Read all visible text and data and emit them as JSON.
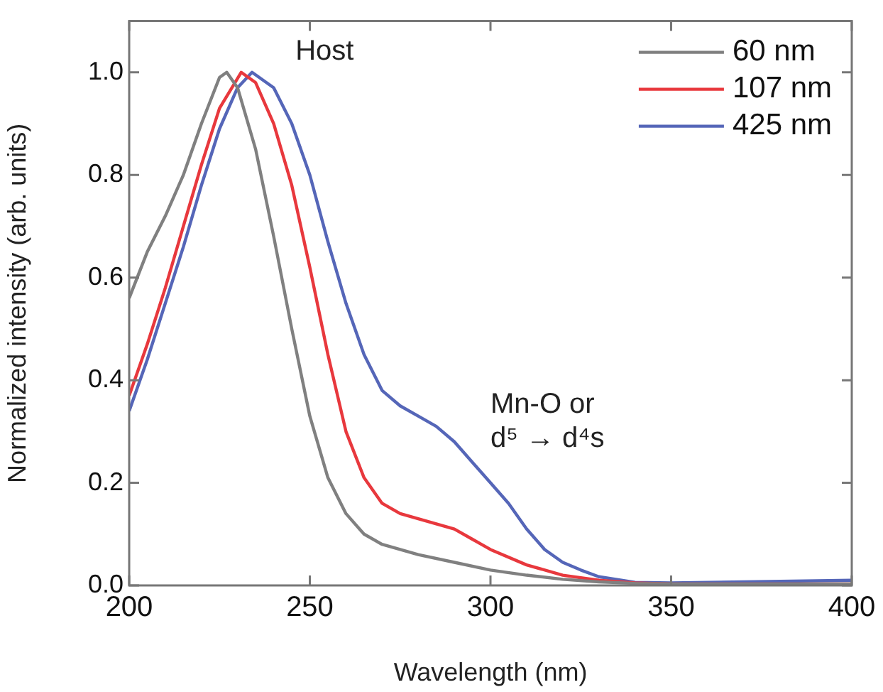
{
  "chart_data": {
    "type": "line",
    "xlabel": "Wavelength (nm)",
    "ylabel": "Normalized intensity (arb. units)",
    "xlim": [
      200,
      400
    ],
    "xticks": [
      200,
      250,
      300,
      350,
      400
    ],
    "ylim": [
      0,
      1.1
    ],
    "yticks": [
      {
        "value": 0,
        "label": "0.0"
      },
      {
        "value": 0.2,
        "label": "0.2"
      },
      {
        "value": 0.4,
        "label": "0.4"
      },
      {
        "value": 0.6,
        "label": "0.6"
      },
      {
        "value": 0.8,
        "label": "0.8"
      },
      {
        "value": 1,
        "label": "1.0"
      }
    ],
    "grid": false,
    "legend": "top right",
    "marker": "none",
    "line_style": "solid",
    "annotations": [
      "Host",
      "Mn-O or\nd⁵ → d⁴s"
    ],
    "series": [
      {
        "name": "60 nm",
        "color": "#808080",
        "x": [
          200,
          205,
          210,
          215,
          220,
          225,
          227,
          230,
          235,
          240,
          245,
          250,
          255,
          260,
          265,
          270,
          280,
          290,
          300,
          310,
          320,
          330,
          340,
          350,
          400
        ],
        "values": [
          0.56,
          0.65,
          0.72,
          0.8,
          0.9,
          0.99,
          1.0,
          0.97,
          0.85,
          0.68,
          0.5,
          0.33,
          0.21,
          0.14,
          0.1,
          0.08,
          0.06,
          0.045,
          0.03,
          0.02,
          0.012,
          0.007,
          0.004,
          0.003,
          0.003
        ]
      },
      {
        "name": "107 nm",
        "color": "#e8383d",
        "x": [
          200,
          205,
          210,
          215,
          220,
          225,
          231,
          235,
          240,
          245,
          250,
          255,
          260,
          265,
          270,
          275,
          280,
          285,
          290,
          295,
          300,
          310,
          320,
          330,
          340,
          350,
          400
        ],
        "values": [
          0.37,
          0.47,
          0.58,
          0.7,
          0.82,
          0.93,
          1.0,
          0.98,
          0.9,
          0.78,
          0.62,
          0.45,
          0.3,
          0.21,
          0.16,
          0.14,
          0.13,
          0.12,
          0.11,
          0.09,
          0.07,
          0.04,
          0.02,
          0.01,
          0.005,
          0.003,
          0.003
        ]
      },
      {
        "name": "425 nm",
        "color": "#5566b8",
        "x": [
          200,
          205,
          210,
          215,
          220,
          225,
          230,
          234,
          240,
          245,
          250,
          255,
          260,
          265,
          270,
          275,
          280,
          285,
          290,
          295,
          300,
          305,
          310,
          315,
          320,
          325,
          330,
          340,
          350,
          400
        ],
        "values": [
          0.34,
          0.44,
          0.55,
          0.66,
          0.78,
          0.89,
          0.97,
          1.0,
          0.97,
          0.9,
          0.8,
          0.67,
          0.55,
          0.45,
          0.38,
          0.35,
          0.33,
          0.31,
          0.28,
          0.24,
          0.2,
          0.16,
          0.11,
          0.07,
          0.045,
          0.03,
          0.017,
          0.006,
          0.005,
          0.01
        ]
      }
    ]
  }
}
